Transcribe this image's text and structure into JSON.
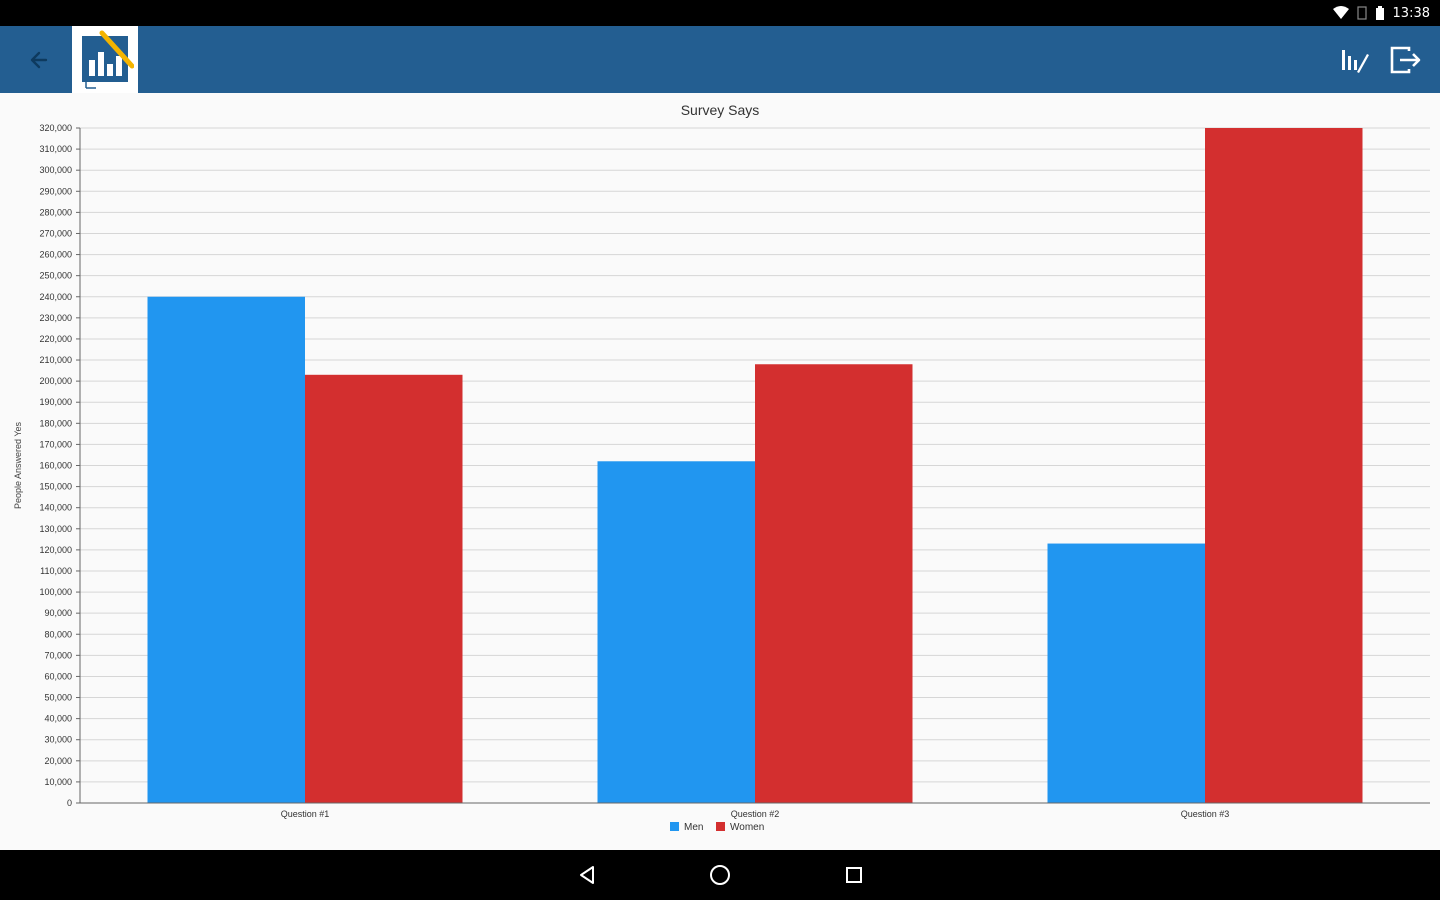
{
  "status": {
    "time": "13:38"
  },
  "colors": {
    "app_bar": "#235e91",
    "men": "#2196f0",
    "women": "#d32f2f",
    "grid": "#d6d6d6",
    "axis": "#666666",
    "text": "#333333"
  },
  "icons": {
    "back": "arrow-back-icon",
    "chart_type": "chart-type-icon",
    "exit": "exit-icon",
    "nav_back": "triangle-back-icon",
    "nav_home": "circle-home-icon",
    "nav_recents": "square-recents-icon"
  },
  "chart_data": {
    "type": "bar",
    "title": "Survey Says",
    "ylabel": "People Answered Yes",
    "xlabel": "",
    "categories": [
      "Question #1",
      "Question #2",
      "Question #3"
    ],
    "series": [
      {
        "name": "Men",
        "values": [
          240000,
          162000,
          123000
        ]
      },
      {
        "name": "Women",
        "values": [
          203000,
          208000,
          320000
        ]
      }
    ],
    "ylim": [
      0,
      320000
    ],
    "ytick_step": 10000,
    "yticks": [
      "0",
      "10,000",
      "20,000",
      "30,000",
      "40,000",
      "50,000",
      "60,000",
      "70,000",
      "80,000",
      "90,000",
      "100,000",
      "110,000",
      "120,000",
      "130,000",
      "140,000",
      "150,000",
      "160,000",
      "170,000",
      "180,000",
      "190,000",
      "200,000",
      "210,000",
      "220,000",
      "230,000",
      "240,000",
      "250,000",
      "260,000",
      "270,000",
      "280,000",
      "290,000",
      "300,000",
      "310,000",
      "320,000"
    ],
    "grid": true,
    "legend": "bottom-center"
  }
}
